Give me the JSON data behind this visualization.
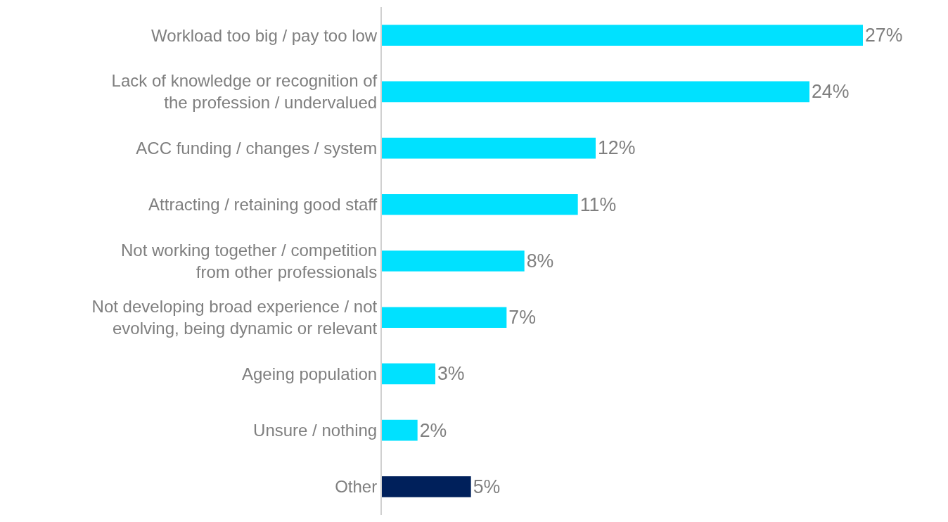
{
  "chart_data": {
    "type": "bar",
    "orientation": "horizontal",
    "categories": [
      "Workload too big / pay too low",
      "Lack of knowledge or recognition of the profession / undervalued",
      "ACC funding / changes / system",
      "Attracting / retaining good staff",
      "Not working together / competition from other professionals",
      "Not developing broad experience / not evolving, being dynamic or relevant",
      "Ageing population",
      "Unsure / nothing",
      "Other"
    ],
    "values": [
      27,
      24,
      12,
      11,
      8,
      7,
      3,
      2,
      5
    ],
    "colors": [
      "#00e1ff",
      "#00e1ff",
      "#00e1ff",
      "#00e1ff",
      "#00e1ff",
      "#00e1ff",
      "#00e1ff",
      "#00e1ff",
      "#00205b"
    ],
    "value_labels": [
      "27%",
      "24%",
      "12%",
      "11%",
      "8%",
      "7%",
      "3%",
      "2%",
      "5%"
    ],
    "grid": false,
    "legend": false
  }
}
